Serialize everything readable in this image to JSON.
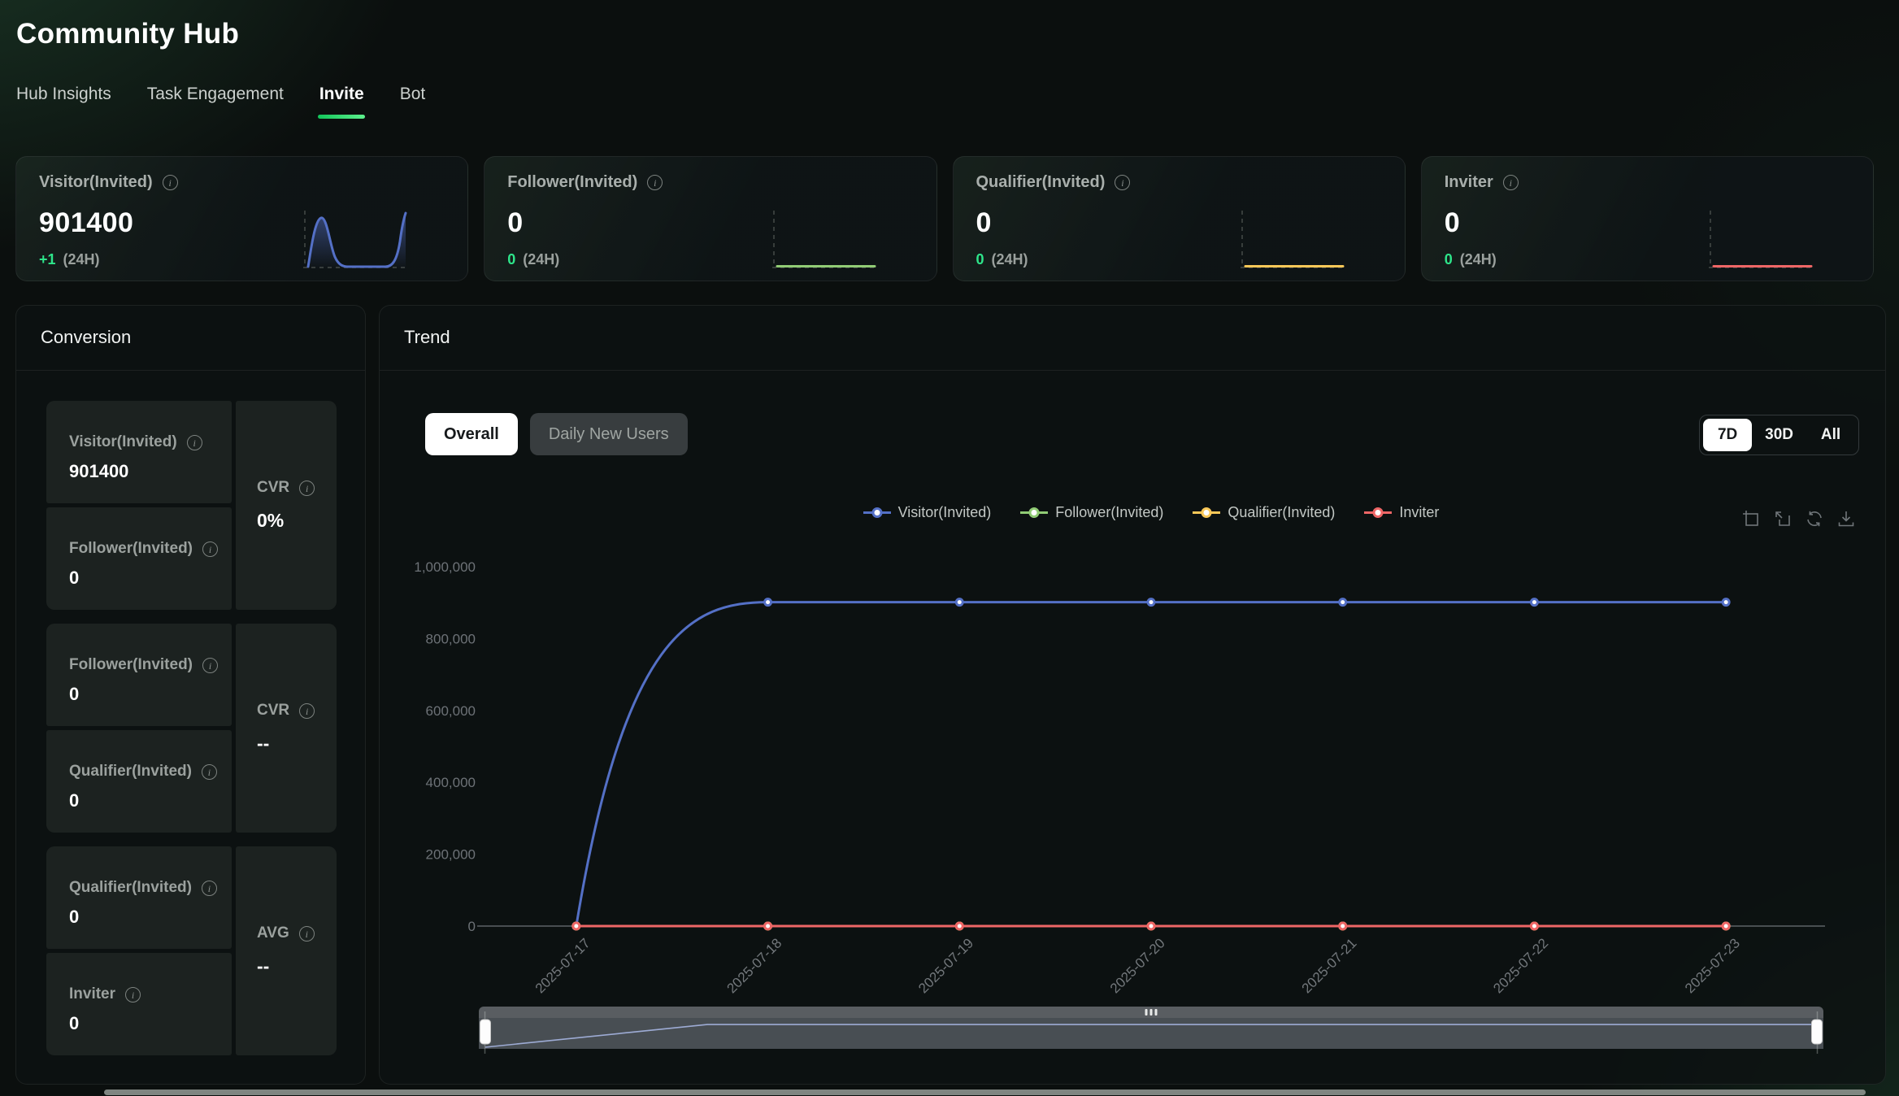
{
  "icons": {
    "info_glyph": "i"
  },
  "colors": {
    "accent_green": "#2ee58a",
    "series_blue": "#5470c6",
    "series_green": "#91cc75",
    "series_yellow": "#fac858",
    "series_red": "#ee6666"
  },
  "header": {
    "title": "Community Hub",
    "tabs": [
      {
        "label": "Hub Insights",
        "active": false
      },
      {
        "label": "Task Engagement",
        "active": false
      },
      {
        "label": "Invite",
        "active": true
      },
      {
        "label": "Bot",
        "active": false
      }
    ]
  },
  "stat_cards": [
    {
      "label": "Visitor(Invited)",
      "value": "901400",
      "delta": "+1",
      "period": "(24H)",
      "color": "#5470c6",
      "spark": "bump"
    },
    {
      "label": "Follower(Invited)",
      "value": "0",
      "delta": "0",
      "period": "(24H)",
      "color": "#91cc75",
      "spark": "flat"
    },
    {
      "label": "Qualifier(Invited)",
      "value": "0",
      "delta": "0",
      "period": "(24H)",
      "color": "#fac858",
      "spark": "flat"
    },
    {
      "label": "Inviter",
      "value": "0",
      "delta": "0",
      "period": "(24H)",
      "color": "#ee6666",
      "spark": "flat"
    }
  ],
  "conversion": {
    "title": "Conversion",
    "groups": [
      {
        "steps": [
          {
            "label": "Visitor(Invited)",
            "value": "901400"
          },
          {
            "label": "Follower(Invited)",
            "value": "0"
          }
        ],
        "ratio": {
          "label": "CVR",
          "value": "0%"
        }
      },
      {
        "steps": [
          {
            "label": "Follower(Invited)",
            "value": "0"
          },
          {
            "label": "Qualifier(Invited)",
            "value": "0"
          }
        ],
        "ratio": {
          "label": "CVR",
          "value": "--"
        }
      },
      {
        "steps": [
          {
            "label": "Qualifier(Invited)",
            "value": "0"
          },
          {
            "label": "Inviter",
            "value": "0"
          }
        ],
        "ratio": {
          "label": "AVG",
          "value": "--"
        }
      }
    ]
  },
  "trend": {
    "title": "Trend",
    "mode_buttons": [
      {
        "label": "Overall",
        "active": true
      },
      {
        "label": "Daily New Users",
        "active": false
      }
    ],
    "range_buttons": [
      {
        "label": "7D",
        "active": true
      },
      {
        "label": "30D",
        "active": false
      },
      {
        "label": "All",
        "active": false
      }
    ],
    "toolbox_icons": [
      "box-zoom-icon",
      "zoom-revert-icon",
      "restore-icon",
      "download-icon"
    ]
  },
  "chart_data": {
    "type": "line",
    "x": [
      "2025-07-17",
      "2025-07-18",
      "2025-07-19",
      "2025-07-20",
      "2025-07-21",
      "2025-07-22",
      "2025-07-23"
    ],
    "series": [
      {
        "name": "Visitor(Invited)",
        "color": "#5470c6",
        "smooth": true,
        "values": [
          0,
          901400,
          901400,
          901400,
          901400,
          901400,
          901400
        ]
      },
      {
        "name": "Follower(Invited)",
        "color": "#91cc75",
        "smooth": false,
        "values": [
          0,
          0,
          0,
          0,
          0,
          0,
          0
        ]
      },
      {
        "name": "Qualifier(Invited)",
        "color": "#fac858",
        "smooth": false,
        "values": [
          0,
          0,
          0,
          0,
          0,
          0,
          0
        ]
      },
      {
        "name": "Inviter",
        "color": "#ee6666",
        "smooth": false,
        "values": [
          0,
          0,
          0,
          0,
          0,
          0,
          0
        ]
      }
    ],
    "ylim": [
      0,
      1000000
    ],
    "y_ticks": [
      0,
      200000,
      400000,
      600000,
      800000,
      1000000
    ],
    "grid": false,
    "legend_position": "top-center",
    "datazoom": {
      "range": "full"
    }
  }
}
